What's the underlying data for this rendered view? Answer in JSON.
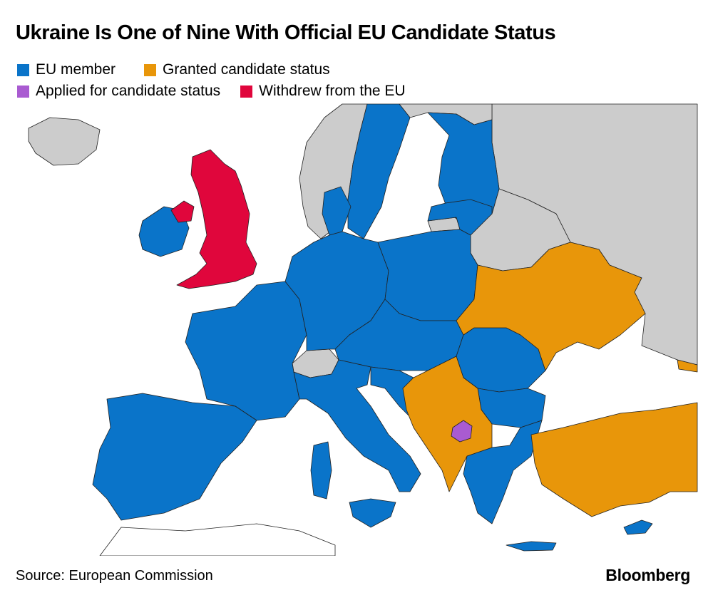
{
  "title": "Ukraine Is One of Nine With Official EU Candidate Status",
  "legend": [
    {
      "label": "EU member",
      "color": "#0a74c9"
    },
    {
      "label": "Granted candidate status",
      "color": "#e8960a"
    },
    {
      "label": "Applied for candidate status",
      "color": "#a95bd1"
    },
    {
      "label": "Withdrew from the EU",
      "color": "#e0063c"
    }
  ],
  "colors": {
    "non_eu": "#cccccc",
    "sea": "#ffffff",
    "border": "#222222"
  },
  "regions": {
    "eu_member": [
      "Ireland",
      "France",
      "Spain",
      "Portugal",
      "Germany",
      "Italy",
      "Poland",
      "Sweden",
      "Finland",
      "Denmark",
      "Netherlands",
      "Belgium",
      "Austria",
      "Czechia",
      "Slovakia",
      "Hungary",
      "Romania",
      "Bulgaria",
      "Greece",
      "Croatia",
      "Slovenia",
      "Estonia",
      "Latvia",
      "Lithuania",
      "Cyprus",
      "Malta",
      "Luxembourg"
    ],
    "granted_candidate_status": [
      "Ukraine",
      "Moldova",
      "Turkey",
      "Serbia",
      "Montenegro",
      "North Macedonia",
      "Albania",
      "Bosnia and Herzegovina",
      "Georgia"
    ],
    "applied_for_candidate_status": [
      "Kosovo"
    ],
    "withdrew_from_eu": [
      "United Kingdom"
    ],
    "non_eu": [
      "Norway",
      "Iceland",
      "Switzerland",
      "Russia",
      "Belarus",
      "Kaliningrad",
      "North Africa"
    ]
  },
  "footer": {
    "source": "Source: European Commission",
    "brand": "Bloomberg"
  }
}
